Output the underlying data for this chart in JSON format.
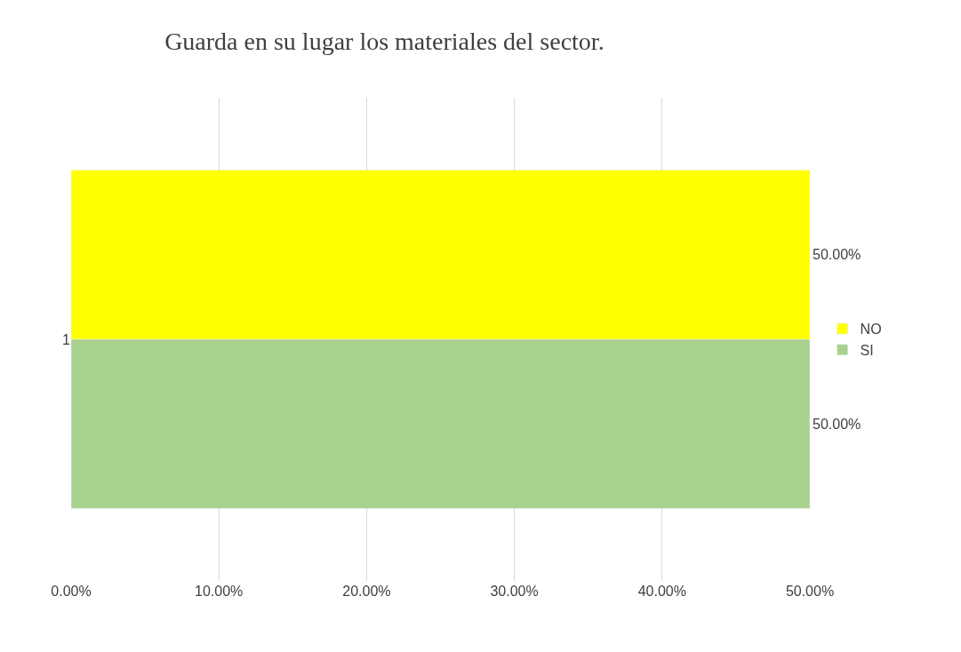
{
  "chart_data": {
    "type": "bar",
    "orientation": "horizontal",
    "title": "Guarda en su lugar los materiales del sector.",
    "categories": [
      "1"
    ],
    "series": [
      {
        "name": "SI",
        "color": "#a9d18e",
        "values": [
          50
        ],
        "value_labels": [
          "50.00%"
        ]
      },
      {
        "name": "NO",
        "color": "#ffff00",
        "values": [
          50
        ],
        "value_labels": [
          "50.00%"
        ]
      }
    ],
    "xlim": [
      0,
      50
    ],
    "xticks": [
      {
        "value": 0,
        "label": "0.00%"
      },
      {
        "value": 10,
        "label": "10.00%"
      },
      {
        "value": 20,
        "label": "20.00%"
      },
      {
        "value": 30,
        "label": "30.00%"
      },
      {
        "value": 40,
        "label": "40.00%"
      },
      {
        "value": 50,
        "label": "50.00%"
      }
    ],
    "grid": "x",
    "legend": "right"
  }
}
